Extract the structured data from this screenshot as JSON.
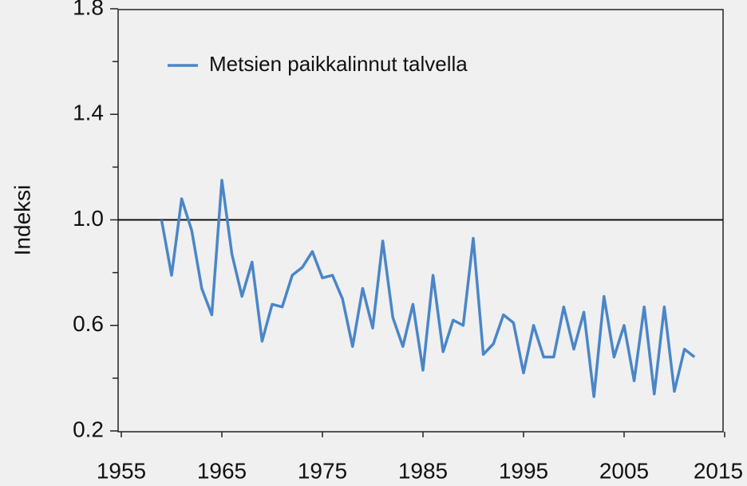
{
  "chart_data": {
    "type": "line",
    "ylabel": "Indeksi",
    "x": [
      1959,
      1960,
      1961,
      1962,
      1963,
      1964,
      1965,
      1966,
      1967,
      1968,
      1969,
      1970,
      1971,
      1972,
      1973,
      1974,
      1975,
      1976,
      1977,
      1978,
      1979,
      1980,
      1981,
      1982,
      1983,
      1984,
      1985,
      1986,
      1987,
      1988,
      1989,
      1990,
      1991,
      1992,
      1993,
      1994,
      1995,
      1996,
      1997,
      1998,
      1999,
      2000,
      2001,
      2002,
      2003,
      2004,
      2005,
      2006,
      2007,
      2008,
      2009,
      2010,
      2011,
      2012
    ],
    "series": [
      {
        "name": "Metsien paikkalinnut talvella",
        "color": "#4a86c8",
        "values": [
          1.0,
          0.79,
          1.08,
          0.96,
          0.74,
          0.64,
          1.15,
          0.87,
          0.71,
          0.84,
          0.54,
          0.68,
          0.67,
          0.79,
          0.82,
          0.88,
          0.78,
          0.79,
          0.7,
          0.52,
          0.74,
          0.59,
          0.92,
          0.63,
          0.52,
          0.68,
          0.43,
          0.79,
          0.5,
          0.62,
          0.6,
          0.93,
          0.49,
          0.53,
          0.64,
          0.61,
          0.42,
          0.6,
          0.48,
          0.48,
          0.67,
          0.51,
          0.65,
          0.33,
          0.71,
          0.48,
          0.6,
          0.39,
          0.67,
          0.34,
          0.67,
          0.35,
          0.51,
          0.48
        ]
      }
    ],
    "xlim": [
      1955,
      2015
    ],
    "xticks": [
      1955,
      1965,
      1975,
      1985,
      1995,
      2005,
      2015
    ],
    "ylim": [
      0.2,
      1.8
    ],
    "yticks": [
      {
        "value": 0.2,
        "label": "0.2"
      },
      {
        "value": 0.6,
        "label": "0.6"
      },
      {
        "value": 1.0,
        "label": "1.0"
      },
      {
        "value": 1.4,
        "label": "1.4"
      },
      {
        "value": 1.8,
        "label": "1.8"
      }
    ],
    "yticks_minor": [
      0.4,
      0.8,
      1.2,
      1.6
    ],
    "reference_line": 1.0,
    "legend": "upper left"
  }
}
